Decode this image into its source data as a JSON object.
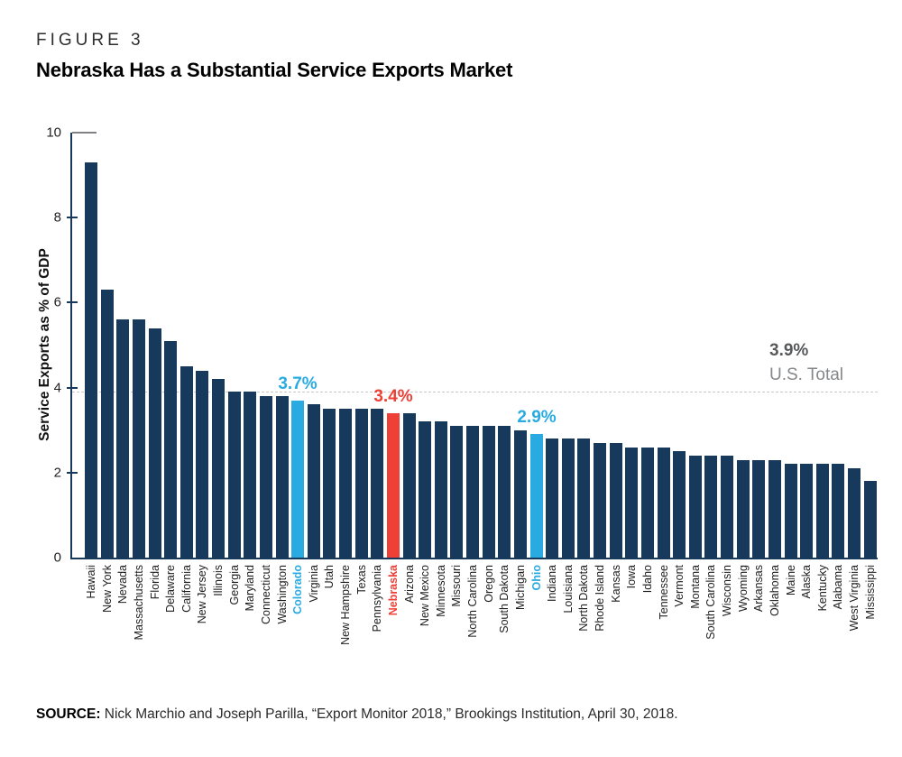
{
  "figure": {
    "label": "FIGURE 3",
    "title": "Nebraska Has a Substantial Service Exports Market",
    "source_label": "SOURCE:",
    "source_text": " Nick Marchio and Joseph Parilla, “Export Monitor 2018,” Brookings Institution, April 30, 2018."
  },
  "chart_data": {
    "type": "bar",
    "title": "Nebraska Has a Substantial Service Exports Market",
    "xlabel": "",
    "ylabel": "Service Exports as % of GDP",
    "ylim": [
      0,
      10
    ],
    "yticks": [
      0,
      2,
      4,
      6,
      8,
      10
    ],
    "grid": false,
    "legend": "none",
    "categories": [
      "Hawaii",
      "New York",
      "Nevada",
      "Massachusetts",
      "Florida",
      "Delaware",
      "California",
      "New Jersey",
      "Illinois",
      "Georgia",
      "Maryland",
      "Connecticut",
      "Washington",
      "Colorado",
      "Virginia",
      "Utah",
      "New Hampshire",
      "Texas",
      "Pennsylvania",
      "Nebraska",
      "Arizona",
      "New Mexico",
      "Minnesota",
      "Missouri",
      "North Carolina",
      "Oregon",
      "South Dakota",
      "Michigan",
      "Ohio",
      "Indiana",
      "Louisiana",
      "North Dakota",
      "Rhode Island",
      "Kansas",
      "Iowa",
      "Idaho",
      "Tennessee",
      "Vermont",
      "Montana",
      "South Carolina",
      "Wisconsin",
      "Wyoming",
      "Arkansas",
      "Oklahoma",
      "Maine",
      "Alaska",
      "Kentucky",
      "Alabama",
      "West Virginia",
      "Mississippi"
    ],
    "values": [
      9.3,
      6.3,
      5.6,
      5.6,
      5.4,
      5.1,
      4.5,
      4.4,
      4.2,
      3.9,
      3.9,
      3.8,
      3.8,
      3.7,
      3.6,
      3.5,
      3.5,
      3.5,
      3.5,
      3.4,
      3.4,
      3.2,
      3.2,
      3.1,
      3.1,
      3.1,
      3.1,
      3.0,
      2.9,
      2.8,
      2.8,
      2.8,
      2.7,
      2.7,
      2.6,
      2.6,
      2.6,
      2.5,
      2.4,
      2.4,
      2.4,
      2.3,
      2.3,
      2.3,
      2.2,
      2.2,
      2.2,
      2.2,
      2.1,
      1.8
    ],
    "colors": {
      "navy": "#16395c",
      "blue": "#29abe2",
      "red": "#ee4036",
      "reference_gray": "#58595b",
      "reference_gray_light": "#85878a",
      "dashed_line": "#c7c8ca"
    },
    "highlights": {
      "Colorado": "blue",
      "Nebraska": "red",
      "Ohio": "blue"
    },
    "annotations": [
      {
        "state": "Colorado",
        "text": "3.7%",
        "color": "blue"
      },
      {
        "state": "Nebraska",
        "text": "3.4%",
        "color": "red"
      },
      {
        "state": "Ohio",
        "text": "2.9%",
        "color": "blue"
      }
    ],
    "reference_line": {
      "value": 3.9,
      "label_value": "3.9%",
      "label_text": "U.S. Total"
    }
  }
}
